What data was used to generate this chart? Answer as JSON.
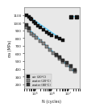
{
  "title": "",
  "ylabel": "σa (MPa)",
  "xlabel": "N (cycles)",
  "ylim": [
    150,
    1200
  ],
  "xlim": [
    20000.0,
    50000000.0
  ],
  "yticks": [
    200,
    300,
    400,
    500,
    600,
    700,
    800,
    900,
    1000,
    1100
  ],
  "plot_bg": "#e8e8e8",
  "fig_bg": "#ffffff",
  "line_color": "#55ccff",
  "series": [
    {
      "label": "air (20°C)",
      "marker": "s",
      "color": "#111111",
      "fc": "#111111",
      "markersize": 3.0,
      "points": [
        [
          30000,
          1100
        ],
        [
          40000,
          1080
        ],
        [
          50000,
          1060
        ],
        [
          60000,
          1040
        ],
        [
          80000,
          1010
        ],
        [
          100000,
          990
        ],
        [
          150000,
          960
        ],
        [
          200000,
          940
        ],
        [
          300000,
          910
        ],
        [
          500000,
          880
        ],
        [
          700000,
          860
        ],
        [
          1000000,
          840
        ],
        [
          2000000,
          810
        ],
        [
          3000000,
          790
        ],
        [
          5000000,
          770
        ]
      ]
    },
    {
      "label": "water (20°C)",
      "marker": "s",
      "color": "#111111",
      "fc": "#555555",
      "markersize": 3.0,
      "points": [
        [
          30000,
          940
        ],
        [
          40000,
          900
        ],
        [
          60000,
          860
        ],
        [
          80000,
          830
        ],
        [
          120000,
          800
        ],
        [
          200000,
          760
        ],
        [
          300000,
          730
        ],
        [
          500000,
          690
        ],
        [
          800000,
          650
        ],
        [
          1200000,
          610
        ],
        [
          2000000,
          570
        ],
        [
          3000000,
          530
        ],
        [
          5000000,
          490
        ],
        [
          8000000,
          450
        ],
        [
          15000000,
          400
        ],
        [
          25000000,
          360
        ]
      ]
    },
    {
      "label": "water (80°C)",
      "marker": "s",
      "color": "#333333",
      "fc": "#333333",
      "markersize": 3.0,
      "points": [
        [
          30000,
          970
        ],
        [
          40000,
          930
        ],
        [
          2000000,
          580
        ],
        [
          3000000,
          550
        ],
        [
          5000000,
          510
        ],
        [
          8000000,
          480
        ],
        [
          15000000,
          440
        ],
        [
          25000000,
          390
        ]
      ]
    }
  ],
  "trend_lines": [
    {
      "color": "#55ccff",
      "points": [
        [
          30000,
          1100
        ],
        [
          5000000,
          770
        ]
      ],
      "linewidth": 0.9
    },
    {
      "color": "#55ccff",
      "points": [
        [
          30000,
          940
        ],
        [
          25000000,
          360
        ]
      ],
      "linewidth": 0.9
    }
  ],
  "runout": {
    "x_start": 15000000.0,
    "x_end": 32000000.0,
    "y": 1080,
    "marker_color": "#111111",
    "line_color": "#55ccff"
  }
}
